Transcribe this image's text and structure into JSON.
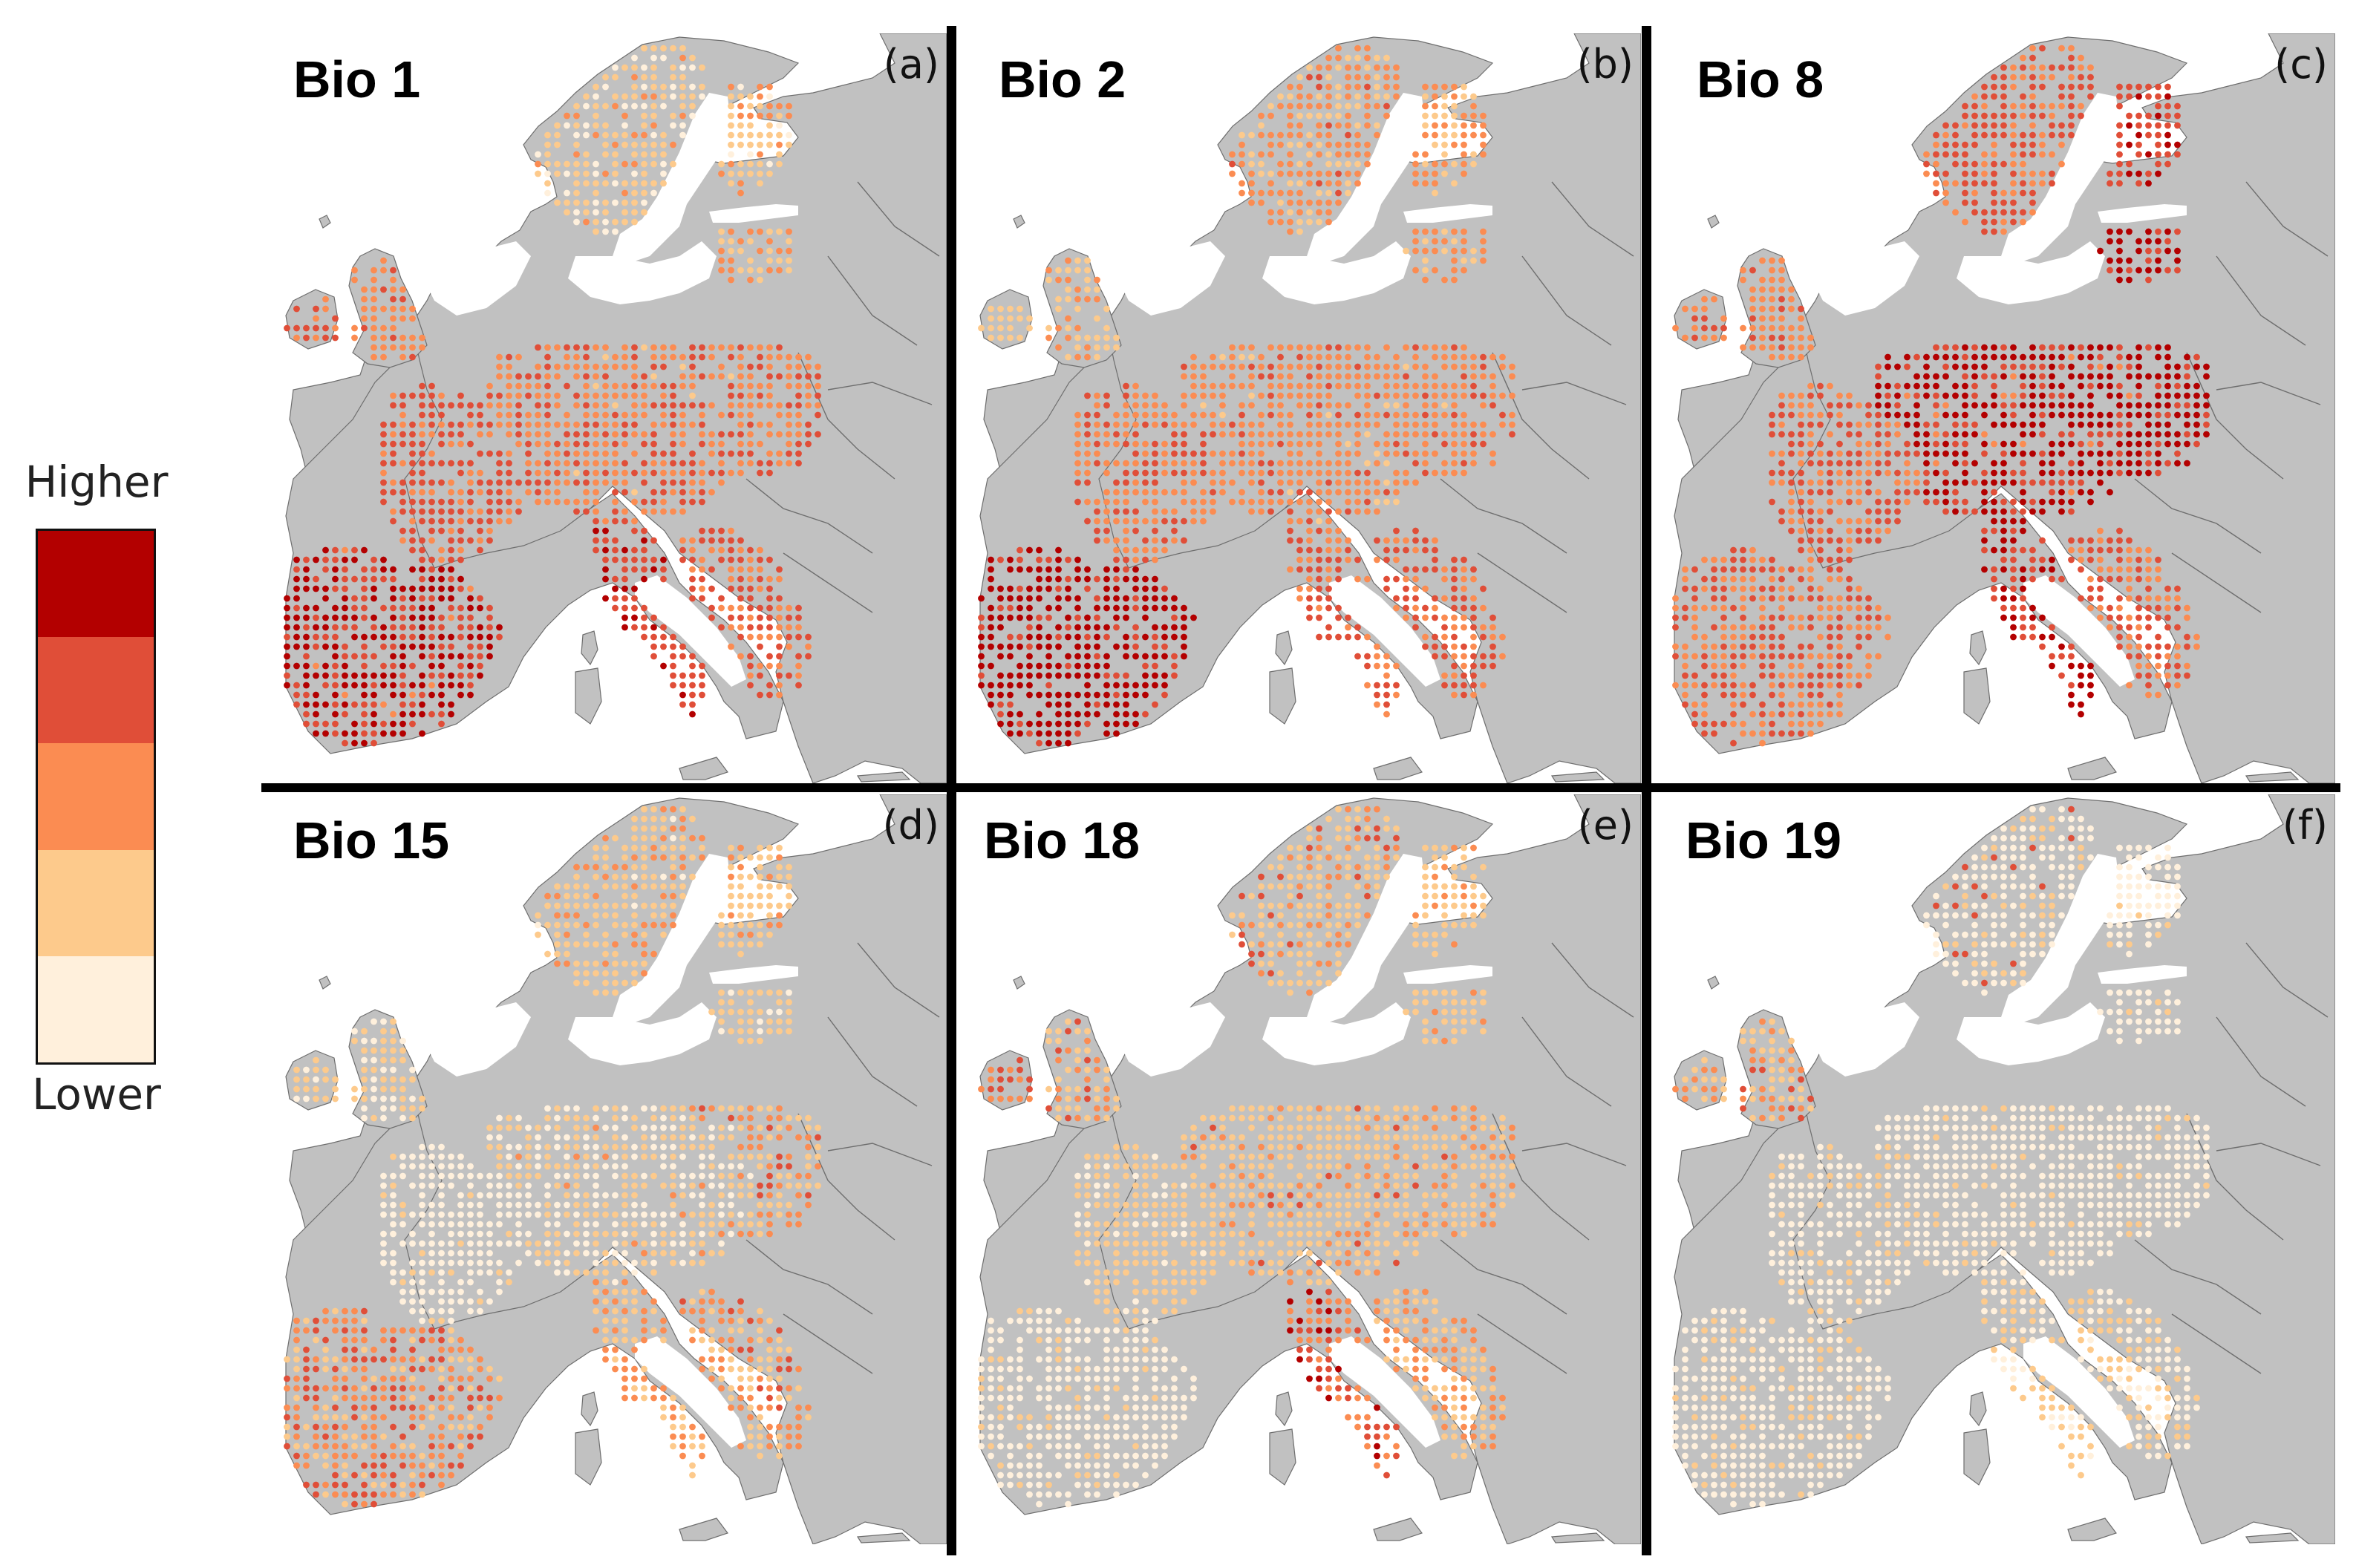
{
  "legend": {
    "higher_label": "Higher",
    "lower_label": "Lower",
    "classes": [
      "#b30000",
      "#e04e38",
      "#fb8c52",
      "#fdca8c",
      "#fff0dc"
    ]
  },
  "map_colors": {
    "land": "#c1c1c1",
    "sea": "#ffffff",
    "border": "#6e6e6e"
  },
  "panels": [
    {
      "title": "Bio 1",
      "tag": "(a)"
    },
    {
      "title": "Bio 2",
      "tag": "(b)"
    },
    {
      "title": "Bio 8",
      "tag": "(c)"
    },
    {
      "title": "Bio 15",
      "tag": "(d)"
    },
    {
      "title": "Bio 18",
      "tag": "(e)"
    },
    {
      "title": "Bio 19",
      "tag": "(f)"
    }
  ]
}
